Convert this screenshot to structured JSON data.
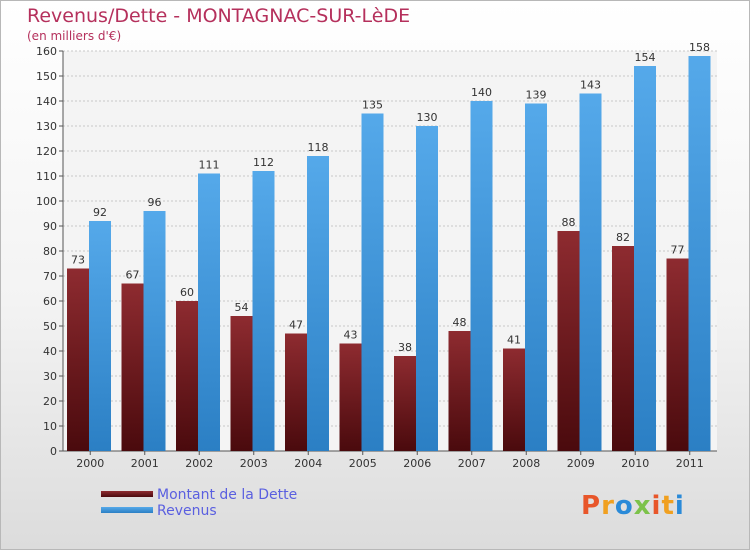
{
  "header": {
    "title": "Revenus/Dette - MONTAGNAC-SUR-LèDE",
    "subtitle": "(en milliers d'€)"
  },
  "chart_data": {
    "type": "bar",
    "categories": [
      "2000",
      "2001",
      "2002",
      "2003",
      "2004",
      "2005",
      "2006",
      "2007",
      "2008",
      "2009",
      "2010",
      "2011"
    ],
    "series": [
      {
        "name": "Montant de la Dette",
        "values": [
          73,
          67,
          60,
          54,
          47,
          43,
          38,
          48,
          41,
          88,
          82,
          77
        ],
        "color": "#7d1f24"
      },
      {
        "name": "Revenus",
        "values": [
          92,
          96,
          111,
          112,
          118,
          135,
          130,
          140,
          139,
          143,
          154,
          158
        ],
        "color": "#3f97db"
      }
    ],
    "ylim": [
      0,
      160
    ],
    "yticks": [
      0,
      10,
      20,
      30,
      40,
      50,
      60,
      70,
      80,
      90,
      100,
      110,
      120,
      130,
      140,
      150,
      160
    ],
    "grid": true,
    "legend_position": "bottom-left"
  },
  "logo": {
    "text": "Proxiti",
    "colors": [
      "#e8562a",
      "#f0a020",
      "#2a8ad8",
      "#7cc24a",
      "#e8562a",
      "#f0a020",
      "#2a8ad8"
    ]
  }
}
